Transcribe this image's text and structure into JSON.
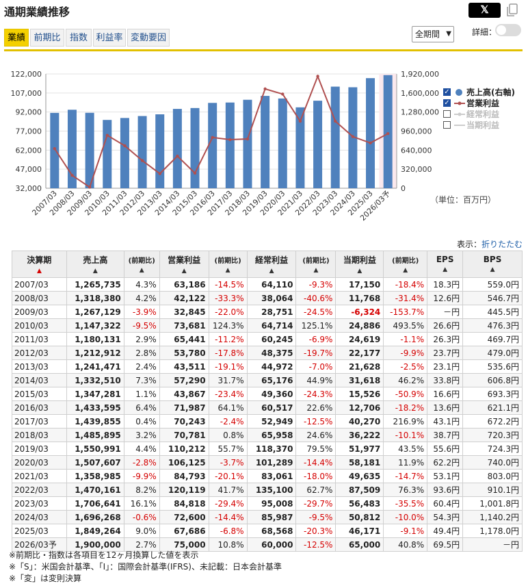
{
  "header": {
    "title": "通期業績推移",
    "x_label": "𝕏"
  },
  "tabs": [
    "業績",
    "前期比",
    "指数",
    "利益率",
    "変動要因"
  ],
  "controls": {
    "period_select": "全期間",
    "detail_label": "詳細："
  },
  "chart_data": {
    "type": "bar+line",
    "categories": [
      "2007/03",
      "2008/03",
      "2009/03",
      "2010/03",
      "2011/03",
      "2012/03",
      "2013/03",
      "2014/03",
      "2015/03",
      "2016/03",
      "2017/03",
      "2018/03",
      "2019/03",
      "2020/03",
      "2021/03",
      "2022/03",
      "2023/03",
      "2024/03",
      "2025/03",
      "2026/03予"
    ],
    "series": [
      {
        "name": "売上高(右軸)",
        "type": "bar",
        "axis": "right",
        "color": "#4f81bd",
        "values": [
          1265735,
          1318380,
          1267129,
          1147322,
          1180131,
          1212912,
          1241471,
          1332510,
          1347281,
          1433595,
          1439855,
          1485895,
          1550991,
          1507607,
          1358985,
          1470161,
          1706641,
          1696268,
          1849264,
          1900000
        ]
      },
      {
        "name": "営業利益",
        "type": "line",
        "axis": "left",
        "color": "#b05050",
        "values": [
          63186,
          42122,
          32845,
          73681,
          65441,
          53780,
          43511,
          57290,
          43867,
          71987,
          70243,
          70781,
          110212,
          106125,
          84793,
          120119,
          84818,
          72600,
          67686,
          75000
        ]
      },
      {
        "name": "経常利益",
        "type": "line",
        "axis": "left",
        "visible": false
      },
      {
        "name": "当期利益",
        "type": "line",
        "axis": "left",
        "visible": false
      }
    ],
    "left_axis": {
      "ylim": [
        32000,
        122000
      ],
      "ticks": [
        "122,000",
        "107,000",
        "92,000",
        "77,000",
        "62,000",
        "47,000",
        "32,000"
      ]
    },
    "right_axis": {
      "ylim": [
        0,
        1920000
      ],
      "ticks": [
        "1,920,000",
        "1,600,000",
        "1,280,000",
        "960,000",
        "640,000",
        "320,000",
        "0"
      ]
    },
    "legend_placement": "right",
    "unit": "（単位：百万円）"
  },
  "display": {
    "label": "表示：",
    "link": "折りたたむ"
  },
  "table": {
    "headers": [
      "決算期",
      "売上高",
      "(前期比)",
      "営業利益",
      "(前期比)",
      "経常利益",
      "(前期比)",
      "当期利益",
      "(前期比)",
      "EPS",
      "BPS"
    ],
    "rows": [
      [
        "2007/03",
        "1,265,735",
        "4.3%",
        "63,186",
        "-14.5%",
        "64,110",
        "-9.3%",
        "17,150",
        "-18.4%",
        "18.3円",
        "559.0円"
      ],
      [
        "2008/03",
        "1,318,380",
        "4.2%",
        "42,122",
        "-33.3%",
        "38,064",
        "-40.6%",
        "11,768",
        "-31.4%",
        "12.6円",
        "546.7円"
      ],
      [
        "2009/03",
        "1,267,129",
        "-3.9%",
        "32,845",
        "-22.0%",
        "28,751",
        "-24.5%",
        "-6,324",
        "-153.7%",
        "－円",
        "445.5円"
      ],
      [
        "2010/03",
        "1,147,322",
        "-9.5%",
        "73,681",
        "124.3%",
        "64,714",
        "125.1%",
        "24,886",
        "493.5%",
        "26.6円",
        "476.3円"
      ],
      [
        "2011/03",
        "1,180,131",
        "2.9%",
        "65,441",
        "-11.2%",
        "60,245",
        "-6.9%",
        "24,619",
        "-1.1%",
        "26.3円",
        "469.7円"
      ],
      [
        "2012/03",
        "1,212,912",
        "2.8%",
        "53,780",
        "-17.8%",
        "48,375",
        "-19.7%",
        "22,177",
        "-9.9%",
        "23.7円",
        "479.0円"
      ],
      [
        "2013/03",
        "1,241,471",
        "2.4%",
        "43,511",
        "-19.1%",
        "44,972",
        "-7.0%",
        "21,628",
        "-2.5%",
        "23.1円",
        "535.6円"
      ],
      [
        "2014/03",
        "1,332,510",
        "7.3%",
        "57,290",
        "31.7%",
        "65,176",
        "44.9%",
        "31,618",
        "46.2%",
        "33.8円",
        "606.8円"
      ],
      [
        "2015/03",
        "1,347,281",
        "1.1%",
        "43,867",
        "-23.4%",
        "49,360",
        "-24.3%",
        "15,526",
        "-50.9%",
        "16.6円",
        "693.3円"
      ],
      [
        "2016/03",
        "1,433,595",
        "6.4%",
        "71,987",
        "64.1%",
        "60,517",
        "22.6%",
        "12,706",
        "-18.2%",
        "13.6円",
        "621.1円"
      ],
      [
        "2017/03",
        "1,439,855",
        "0.4%",
        "70,243",
        "-2.4%",
        "52,949",
        "-12.5%",
        "40,270",
        "216.9%",
        "43.1円",
        "672.2円"
      ],
      [
        "2018/03",
        "1,485,895",
        "3.2%",
        "70,781",
        "0.8%",
        "65,958",
        "24.6%",
        "36,222",
        "-10.1%",
        "38.7円",
        "720.3円"
      ],
      [
        "2019/03",
        "1,550,991",
        "4.4%",
        "110,212",
        "55.7%",
        "118,370",
        "79.5%",
        "51,977",
        "43.5%",
        "55.6円",
        "724.3円"
      ],
      [
        "2020/03",
        "1,507,607",
        "-2.8%",
        "106,125",
        "-3.7%",
        "101,289",
        "-14.4%",
        "58,181",
        "11.9%",
        "62.2円",
        "740.0円"
      ],
      [
        "2021/03",
        "1,358,985",
        "-9.9%",
        "84,793",
        "-20.1%",
        "83,061",
        "-18.0%",
        "49,635",
        "-14.7%",
        "53.1円",
        "803.0円"
      ],
      [
        "2022/03",
        "1,470,161",
        "8.2%",
        "120,119",
        "41.7%",
        "135,100",
        "62.7%",
        "87,509",
        "76.3%",
        "93.6円",
        "910.1円"
      ],
      [
        "2023/03",
        "1,706,641",
        "16.1%",
        "84,818",
        "-29.4%",
        "95,008",
        "-29.7%",
        "56,483",
        "-35.5%",
        "60.4円",
        "1,001.8円"
      ],
      [
        "2024/03",
        "1,696,268",
        "-0.6%",
        "72,600",
        "-14.4%",
        "85,987",
        "-9.5%",
        "50,812",
        "-10.0%",
        "54.3円",
        "1,140.2円"
      ],
      [
        "2025/03",
        "1,849,264",
        "9.0%",
        "67,686",
        "-6.8%",
        "68,568",
        "-20.3%",
        "46,171",
        "-9.1%",
        "49.4円",
        "1,178.0円"
      ],
      [
        "2026/03予",
        "1,900,000",
        "2.7%",
        "75,000",
        "10.8%",
        "60,000",
        "-12.5%",
        "65,000",
        "40.8%",
        "69.5円",
        "－円"
      ]
    ]
  },
  "notes": [
    "※前期比・指数は各項目を12ヶ月換算した値を表示",
    "※「S」：米国会計基準、「I」：国際会計基準(IFRS)、未記載：日本会計基準",
    "※「変」は変則決算"
  ]
}
